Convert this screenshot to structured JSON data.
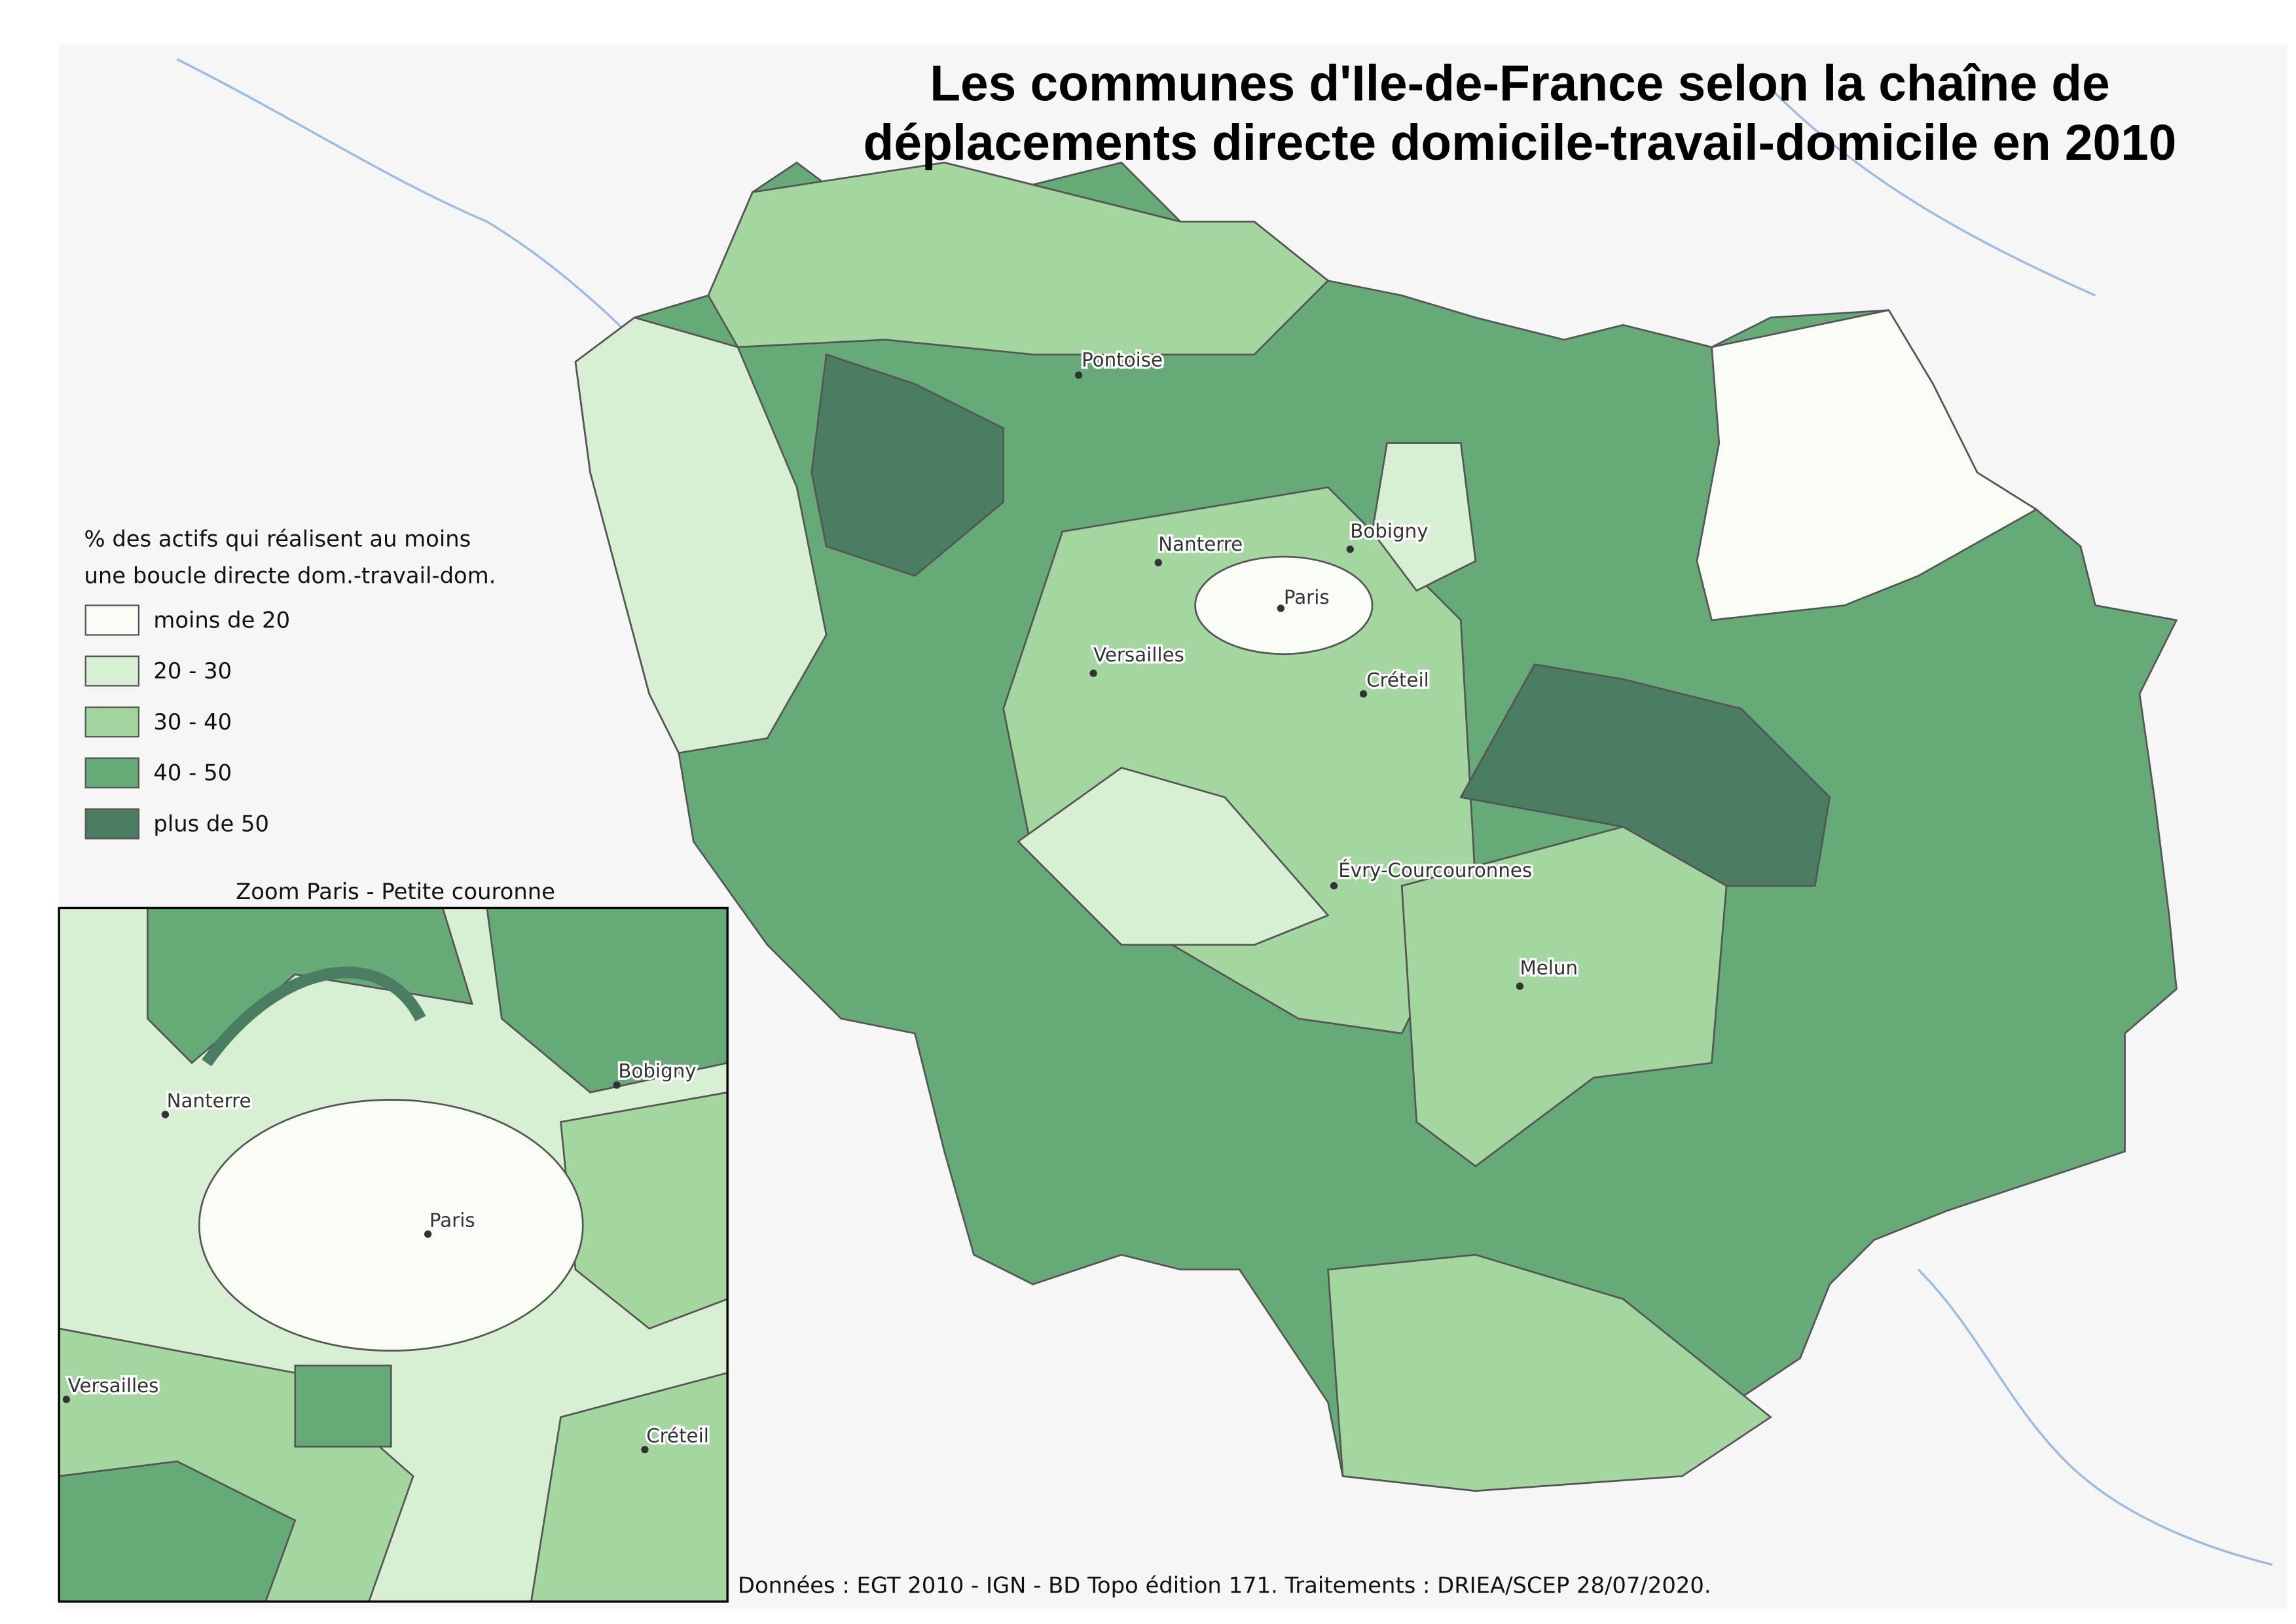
{
  "title": [
    "Les communes d'Ile-de-France selon la chaîne de",
    "déplacements directe domicile-travail-domicile en 2010"
  ],
  "legend": {
    "title": [
      "% des actifs qui réalisent au moins",
      "une boucle directe dom.-travail-dom."
    ],
    "items": [
      {
        "label": "moins de 20",
        "color": "#f7fcf5"
      },
      {
        "label": "20 - 30",
        "color": "#d9efd3"
      },
      {
        "label": "30 - 40",
        "color": "#a4d6a0"
      },
      {
        "label": "40 - 50",
        "color": "#66aa77"
      },
      {
        "label": "plus de 50",
        "color": "#4a7d62"
      }
    ]
  },
  "cities": [
    "Pontoise",
    "Nanterre",
    "Bobigny",
    "Paris",
    "Versailles",
    "Créteil",
    "Évry-Courcouronnes",
    "Melun"
  ],
  "inset": {
    "title": "Zoom Paris - Petite couronne",
    "cities": [
      "Nanterre",
      "Bobigny",
      "Paris",
      "Versailles",
      "Créteil"
    ]
  },
  "source": "Données : EGT 2010 - IGN - BD Topo édition 171. Traitements : DRIEA/SCEP 28/07/2020."
}
